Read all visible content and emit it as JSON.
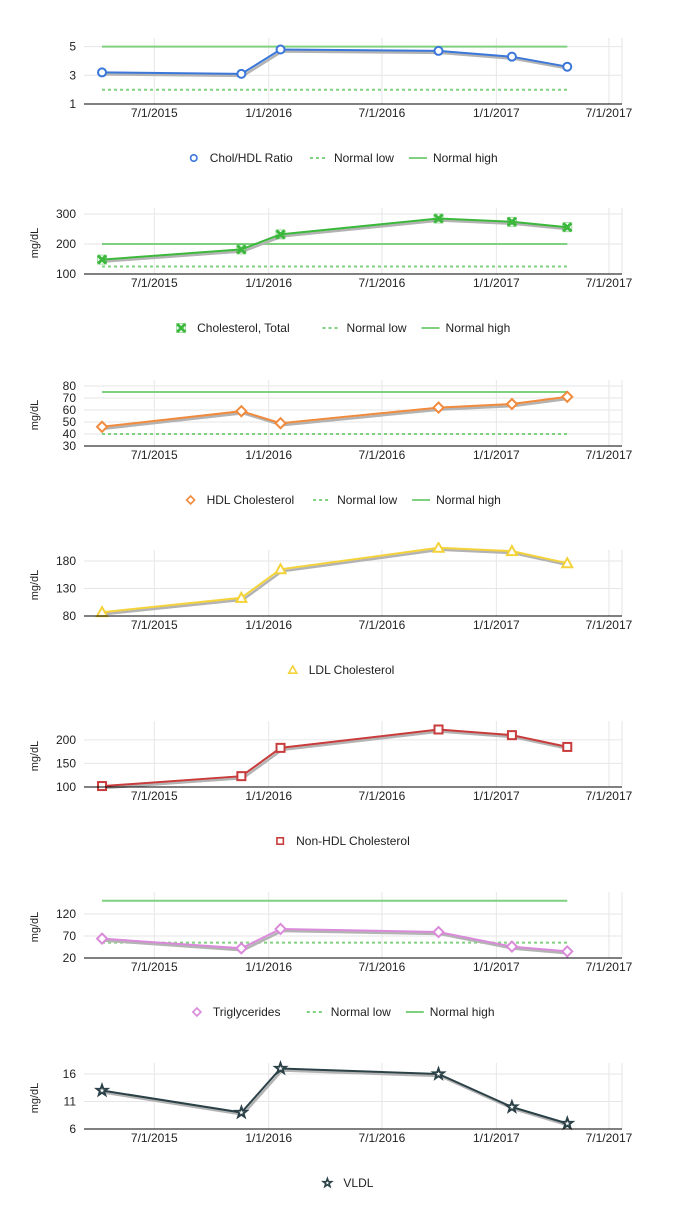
{
  "colors": {
    "grid": "#e6e6e6",
    "axis": "#000000",
    "shadow": "#b3b3b3",
    "normal_low": "#7fd17f",
    "normal_high": "#7fd17f"
  },
  "x_axis": {
    "ticks": [
      "2015-07-01",
      "2016-01-01",
      "2016-07-01",
      "2017-01-01",
      "2017-07-01"
    ],
    "tick_labels": [
      "7/1/2015",
      "1/1/2016",
      "7/1/2016",
      "1/1/2017",
      "7/1/2017"
    ],
    "range": [
      "2015-03-10",
      "2017-07-22"
    ]
  },
  "chart_data": [
    {
      "type": "line",
      "x": [
        "2015-04-08",
        "2015-11-18",
        "2016-01-20",
        "2016-09-30",
        "2017-01-26",
        "2017-04-25"
      ],
      "ylabel": "",
      "ylim": [
        1,
        5.6
      ],
      "yticks": [
        1,
        3,
        5
      ],
      "series": [
        {
          "name": "Chol/HDL Ratio",
          "color": "#3b77d9",
          "marker": "circle",
          "values": [
            3.2,
            3.1,
            4.8,
            4.7,
            4.3,
            3.6
          ]
        },
        {
          "name": "Normal low",
          "color": "#7fd17f",
          "style": "dotted",
          "values": [
            2,
            2,
            2,
            2,
            2,
            2
          ]
        },
        {
          "name": "Normal high",
          "color": "#7fd17f",
          "style": "solid",
          "values": [
            5,
            5,
            5,
            5,
            5,
            5
          ]
        }
      ],
      "legend": "bottom"
    },
    {
      "type": "line",
      "x": [
        "2015-04-08",
        "2015-11-18",
        "2016-01-20",
        "2016-09-30",
        "2017-01-26",
        "2017-04-25"
      ],
      "ylabel": "mg/dL",
      "ylim": [
        100,
        320
      ],
      "yticks": [
        100,
        200,
        300
      ],
      "series": [
        {
          "name": "Cholesterol, Total",
          "color": "#3cb83c",
          "marker": "cross",
          "values": [
            148,
            182,
            232,
            285,
            274,
            256
          ]
        },
        {
          "name": "Normal low",
          "color": "#7fd17f",
          "style": "dotted",
          "values": [
            125,
            125,
            125,
            125,
            125,
            125
          ]
        },
        {
          "name": "Normal high",
          "color": "#7fd17f",
          "style": "solid",
          "values": [
            200,
            200,
            200,
            200,
            200,
            200
          ]
        }
      ],
      "legend": "bottom"
    },
    {
      "type": "line",
      "x": [
        "2015-04-08",
        "2015-11-18",
        "2016-01-20",
        "2016-09-30",
        "2017-01-26",
        "2017-04-25"
      ],
      "ylabel": "mg/dL",
      "ylim": [
        30,
        85
      ],
      "yticks": [
        30,
        40,
        50,
        60,
        70,
        80
      ],
      "series": [
        {
          "name": "HDL Cholesterol",
          "color": "#f08a3c",
          "marker": "diamond",
          "values": [
            46,
            59,
            49,
            62,
            65,
            71
          ]
        },
        {
          "name": "Normal low",
          "color": "#7fd17f",
          "style": "dotted",
          "values": [
            40,
            40,
            40,
            40,
            40,
            40
          ]
        },
        {
          "name": "Normal high",
          "color": "#7fd17f",
          "style": "solid",
          "values": [
            75,
            75,
            75,
            75,
            75,
            75
          ]
        }
      ],
      "legend": "bottom"
    },
    {
      "type": "line",
      "x": [
        "2015-04-08",
        "2015-11-18",
        "2016-01-20",
        "2016-09-30",
        "2017-01-26",
        "2017-04-25"
      ],
      "ylabel": "mg/dL",
      "ylim": [
        80,
        200
      ],
      "yticks": [
        80,
        130,
        180
      ],
      "series": [
        {
          "name": "LDL Cholesterol",
          "color": "#f3d23a",
          "marker": "triangle",
          "values": [
            87,
            113,
            165,
            204,
            198,
            176
          ]
        }
      ],
      "legend": "bottom"
    },
    {
      "type": "line",
      "x": [
        "2015-04-08",
        "2015-11-18",
        "2016-01-20",
        "2016-09-30",
        "2017-01-26",
        "2017-04-25"
      ],
      "ylabel": "mg/dL",
      "ylim": [
        100,
        240
      ],
      "yticks": [
        100,
        150,
        200
      ],
      "series": [
        {
          "name": "Non-HDL Cholesterol",
          "color": "#c83c3c",
          "marker": "square",
          "values": [
            102,
            123,
            183,
            222,
            210,
            185
          ]
        }
      ],
      "legend": "bottom"
    },
    {
      "type": "line",
      "x": [
        "2015-04-08",
        "2015-11-18",
        "2016-01-20",
        "2016-09-30",
        "2017-01-26",
        "2017-04-25"
      ],
      "ylabel": "mg/dL",
      "ylim": [
        20,
        170
      ],
      "yticks": [
        20,
        70,
        120
      ],
      "series": [
        {
          "name": "Triglycerides",
          "color": "#d98ad9",
          "marker": "diamond",
          "values": [
            64,
            42,
            86,
            79,
            46,
            35
          ]
        },
        {
          "name": "Normal low",
          "color": "#7fd17f",
          "style": "dotted",
          "values": [
            55,
            55,
            55,
            55,
            55,
            55
          ]
        },
        {
          "name": "Normal high",
          "color": "#7fd17f",
          "style": "solid",
          "values": [
            150,
            150,
            150,
            150,
            150,
            150
          ]
        }
      ],
      "legend": "bottom"
    },
    {
      "type": "line",
      "x": [
        "2015-04-08",
        "2015-11-18",
        "2016-01-20",
        "2016-09-30",
        "2017-01-26",
        "2017-04-25"
      ],
      "ylabel": "mg/dL",
      "ylim": [
        6,
        18
      ],
      "yticks": [
        6,
        11,
        16
      ],
      "series": [
        {
          "name": "VLDL",
          "color": "#2b4148",
          "marker": "star",
          "values": [
            13,
            9,
            17,
            16,
            10,
            7
          ]
        }
      ],
      "legend": "bottom"
    }
  ]
}
